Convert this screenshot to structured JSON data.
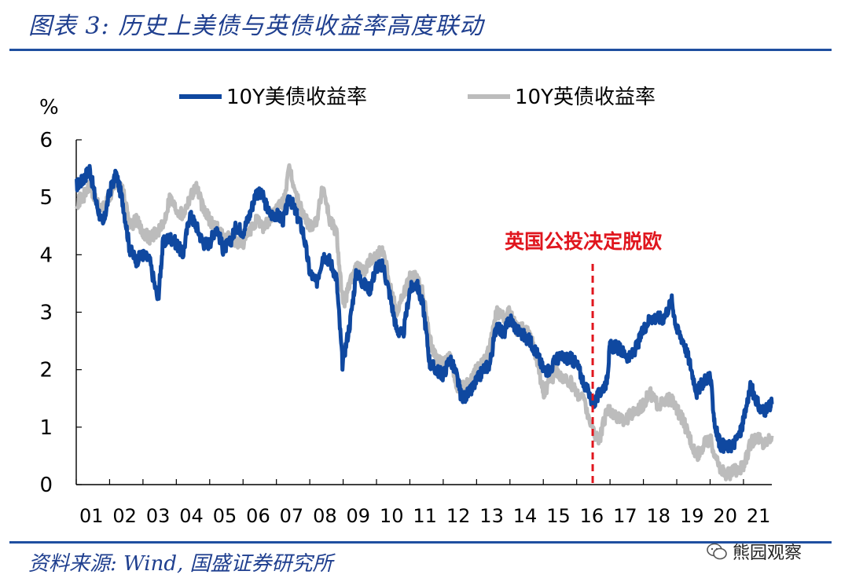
{
  "header": {
    "title": "图表 3: 历史上美债与英债收益率高度联动"
  },
  "footer": {
    "source": "资料来源: Wind, 国盛证券研究所",
    "watermark": "熊园观察"
  },
  "colors": {
    "us": "#0f48a0",
    "uk": "#bcbcbc",
    "annotation": "#e0161e",
    "accent": "#1f4fa0"
  },
  "chart_data": {
    "type": "line",
    "title": "",
    "ylabel": "%",
    "xlabel": "",
    "ylim": [
      0,
      6
    ],
    "xlim": [
      2001,
      2021.85
    ],
    "yticks": [
      "0",
      "1",
      "2",
      "3",
      "4",
      "5",
      "6"
    ],
    "xticks": [
      "01",
      "02",
      "03",
      "04",
      "05",
      "06",
      "07",
      "08",
      "09",
      "10",
      "11",
      "12",
      "13",
      "14",
      "15",
      "16",
      "17",
      "18",
      "19",
      "20",
      "21"
    ],
    "legend": [
      "10Y美债收益率",
      "10Y英债收益率"
    ],
    "legend_position": "top",
    "annotation": {
      "label": "英国公投决定脱欧",
      "x": 2016.48
    },
    "series": [
      {
        "name": "10Y美债收益率",
        "color": "#0f48a0",
        "x": [
          2001.0,
          2001.2,
          2001.4,
          2001.6,
          2001.8,
          2002.0,
          2002.2,
          2002.4,
          2002.6,
          2002.8,
          2003.0,
          2003.2,
          2003.45,
          2003.6,
          2003.8,
          2004.0,
          2004.2,
          2004.4,
          2004.6,
          2004.8,
          2005.0,
          2005.2,
          2005.4,
          2005.6,
          2005.8,
          2006.0,
          2006.2,
          2006.4,
          2006.6,
          2006.8,
          2007.0,
          2007.2,
          2007.4,
          2007.6,
          2007.8,
          2008.0,
          2008.2,
          2008.4,
          2008.6,
          2008.8,
          2008.98,
          2009.2,
          2009.4,
          2009.6,
          2009.8,
          2010.0,
          2010.2,
          2010.4,
          2010.6,
          2010.8,
          2011.0,
          2011.2,
          2011.4,
          2011.6,
          2011.8,
          2012.0,
          2012.2,
          2012.4,
          2012.55,
          2012.8,
          2013.0,
          2013.2,
          2013.4,
          2013.6,
          2013.8,
          2014.0,
          2014.2,
          2014.4,
          2014.6,
          2014.8,
          2015.0,
          2015.2,
          2015.4,
          2015.6,
          2015.8,
          2016.0,
          2016.2,
          2016.5,
          2016.7,
          2016.9,
          2017.0,
          2017.2,
          2017.4,
          2017.6,
          2017.8,
          2018.0,
          2018.2,
          2018.4,
          2018.6,
          2018.85,
          2019.0,
          2019.2,
          2019.4,
          2019.6,
          2019.8,
          2020.0,
          2020.15,
          2020.3,
          2020.5,
          2020.7,
          2020.9,
          2021.0,
          2021.2,
          2021.3,
          2021.5,
          2021.7,
          2021.85
        ],
        "values": [
          5.2,
          5.3,
          5.5,
          4.9,
          4.5,
          5.1,
          5.4,
          4.9,
          4.1,
          3.9,
          4.0,
          3.9,
          3.2,
          4.2,
          4.3,
          4.2,
          4.0,
          4.7,
          4.5,
          4.2,
          4.2,
          4.5,
          4.1,
          4.2,
          4.5,
          4.4,
          4.7,
          5.1,
          5.0,
          4.7,
          4.7,
          4.6,
          5.0,
          4.7,
          4.4,
          3.7,
          3.5,
          4.0,
          3.9,
          3.6,
          2.1,
          2.8,
          3.7,
          3.5,
          3.4,
          3.8,
          3.8,
          3.3,
          2.7,
          2.6,
          3.4,
          3.5,
          3.1,
          2.1,
          2.0,
          1.9,
          2.2,
          1.9,
          1.5,
          1.6,
          1.8,
          2.0,
          2.1,
          2.8,
          2.6,
          2.9,
          2.7,
          2.6,
          2.5,
          2.3,
          2.0,
          2.0,
          2.2,
          2.2,
          2.2,
          2.1,
          1.8,
          1.4,
          1.6,
          1.8,
          2.4,
          2.4,
          2.3,
          2.2,
          2.4,
          2.7,
          2.9,
          2.9,
          2.9,
          3.2,
          2.7,
          2.5,
          2.1,
          1.6,
          1.8,
          1.9,
          1.0,
          0.7,
          0.65,
          0.7,
          0.9,
          1.1,
          1.7,
          1.6,
          1.3,
          1.3,
          1.4
        ]
      },
      {
        "name": "10Y英债收益率",
        "color": "#bcbcbc",
        "x": [
          2001.0,
          2001.2,
          2001.4,
          2001.6,
          2001.8,
          2002.0,
          2002.2,
          2002.4,
          2002.6,
          2002.8,
          2003.0,
          2003.2,
          2003.4,
          2003.6,
          2003.8,
          2004.0,
          2004.2,
          2004.4,
          2004.6,
          2004.8,
          2005.0,
          2005.2,
          2005.4,
          2005.6,
          2005.8,
          2006.0,
          2006.2,
          2006.4,
          2006.6,
          2006.8,
          2007.0,
          2007.2,
          2007.4,
          2007.6,
          2007.8,
          2008.0,
          2008.2,
          2008.4,
          2008.6,
          2008.8,
          2009.0,
          2009.2,
          2009.4,
          2009.6,
          2009.8,
          2010.0,
          2010.2,
          2010.4,
          2010.6,
          2010.8,
          2011.0,
          2011.2,
          2011.4,
          2011.6,
          2011.8,
          2012.0,
          2012.2,
          2012.4,
          2012.6,
          2012.8,
          2013.0,
          2013.2,
          2013.4,
          2013.6,
          2013.8,
          2014.0,
          2014.2,
          2014.4,
          2014.6,
          2014.8,
          2015.0,
          2015.2,
          2015.4,
          2015.6,
          2015.8,
          2016.0,
          2016.2,
          2016.5,
          2016.7,
          2016.9,
          2017.0,
          2017.2,
          2017.4,
          2017.6,
          2017.8,
          2018.0,
          2018.2,
          2018.4,
          2018.6,
          2018.8,
          2019.0,
          2019.2,
          2019.4,
          2019.6,
          2019.8,
          2020.0,
          2020.2,
          2020.4,
          2020.6,
          2020.8,
          2021.0,
          2021.2,
          2021.4,
          2021.6,
          2021.85
        ],
        "values": [
          4.9,
          5.0,
          5.2,
          4.9,
          4.8,
          5.0,
          5.3,
          5.1,
          4.5,
          4.6,
          4.4,
          4.3,
          4.4,
          4.5,
          5.0,
          4.8,
          4.7,
          5.0,
          5.2,
          4.8,
          4.6,
          4.5,
          4.3,
          4.3,
          4.2,
          4.2,
          4.4,
          4.6,
          4.5,
          4.6,
          4.8,
          4.9,
          5.5,
          5.0,
          4.7,
          4.5,
          4.6,
          5.2,
          4.6,
          4.4,
          3.1,
          3.5,
          3.8,
          3.7,
          3.9,
          4.0,
          4.1,
          3.5,
          3.0,
          3.3,
          3.6,
          3.6,
          3.3,
          2.5,
          2.2,
          2.1,
          2.2,
          1.7,
          1.7,
          1.8,
          2.0,
          2.1,
          2.4,
          3.0,
          2.9,
          3.0,
          2.7,
          2.7,
          2.6,
          2.2,
          1.6,
          1.8,
          2.0,
          1.8,
          1.8,
          1.6,
          1.5,
          0.9,
          0.8,
          1.3,
          1.3,
          1.2,
          1.1,
          1.2,
          1.3,
          1.4,
          1.6,
          1.4,
          1.4,
          1.5,
          1.3,
          1.1,
          0.8,
          0.5,
          0.7,
          0.8,
          0.4,
          0.2,
          0.2,
          0.25,
          0.3,
          0.7,
          0.85,
          0.7,
          0.85
        ]
      }
    ]
  }
}
